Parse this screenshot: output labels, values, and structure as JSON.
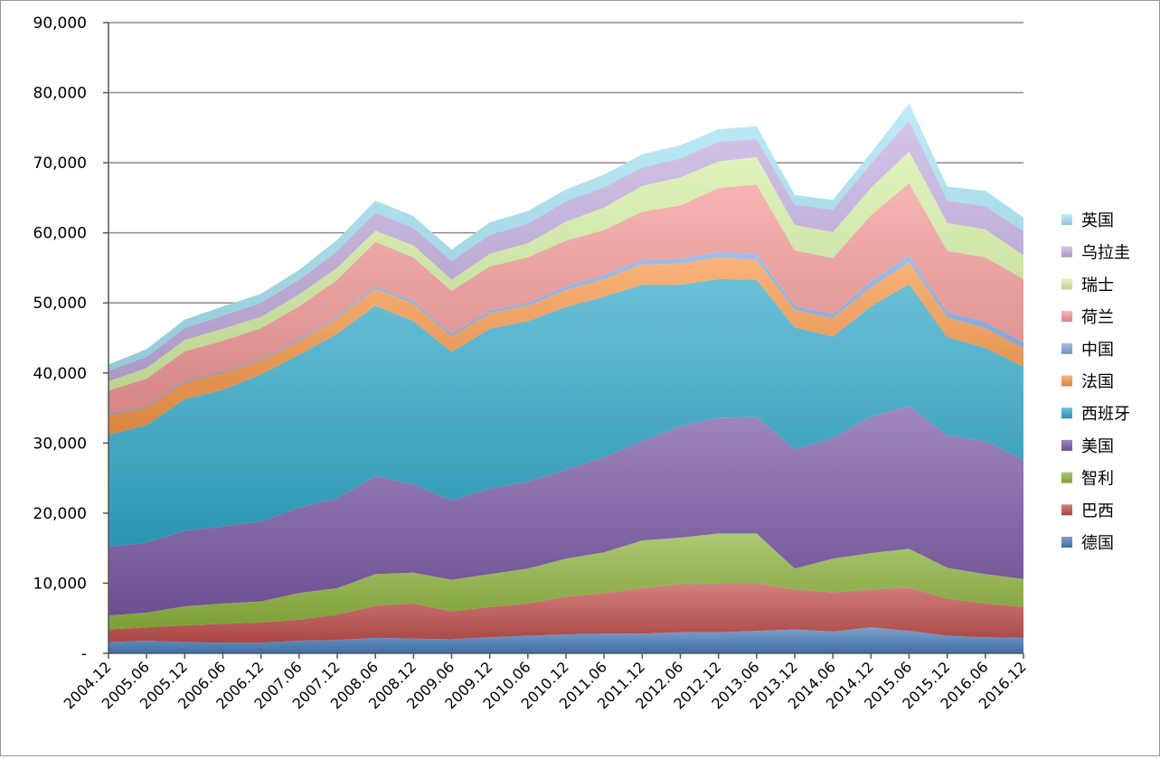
{
  "chart_data": {
    "type": "area",
    "stacked": true,
    "categories": [
      "2004.12",
      "2005.06",
      "2005.12",
      "2006.06",
      "2006.12",
      "2007.06",
      "2007.12",
      "2008.06",
      "2008.12",
      "2009.06",
      "2009.12",
      "2010.06",
      "2010.12",
      "2011.06",
      "2011.12",
      "2012.06",
      "2012.12",
      "2013.06",
      "2013.12",
      "2014.06",
      "2014.12",
      "2015.06",
      "2015.12",
      "2016.06",
      "2016.12"
    ],
    "ylim": [
      0,
      90000
    ],
    "yticks": [
      0,
      10000,
      20000,
      30000,
      40000,
      50000,
      60000,
      70000,
      80000,
      90000
    ],
    "ytick_labels": [
      "-",
      "10,000",
      "20,000",
      "30,000",
      "40,000",
      "50,000",
      "60,000",
      "70,000",
      "80,000",
      "90,000"
    ],
    "grid": true,
    "legend_position": "right",
    "series": [
      {
        "name": "德国",
        "color": "#4a7ebb",
        "values": [
          1600,
          1800,
          1600,
          1500,
          1500,
          1800,
          1900,
          2200,
          2100,
          2000,
          2300,
          2500,
          2700,
          2800,
          2800,
          3000,
          3000,
          3200,
          3400,
          3100,
          3700,
          3200,
          2500,
          2300,
          2200
        ]
      },
      {
        "name": "巴西",
        "color": "#c0504d",
        "values": [
          1800,
          1900,
          2400,
          2700,
          2900,
          3000,
          3600,
          4600,
          5000,
          4000,
          4300,
          4600,
          5400,
          5800,
          6500,
          6900,
          6900,
          6800,
          5700,
          5600,
          5400,
          6200,
          5300,
          4800,
          4400
        ]
      },
      {
        "name": "智利",
        "color": "#8db33c",
        "values": [
          2000,
          2100,
          2700,
          2900,
          3000,
          3800,
          3800,
          4500,
          4400,
          4500,
          4700,
          5000,
          5400,
          5800,
          6800,
          6600,
          7200,
          7100,
          3000,
          4800,
          5200,
          5500,
          4400,
          4200,
          4000
        ]
      },
      {
        "name": "美国",
        "color": "#7b5aa6",
        "values": [
          9800,
          10000,
          10800,
          11000,
          11400,
          12200,
          12800,
          14000,
          12600,
          11300,
          12200,
          12400,
          12700,
          13600,
          14200,
          15900,
          16500,
          16600,
          17000,
          17200,
          19500,
          20400,
          18900,
          19000,
          17000
        ]
      },
      {
        "name": "西班牙",
        "color": "#31a9c9",
        "values": [
          16000,
          16800,
          18800,
          19500,
          21000,
          21800,
          23500,
          24300,
          23300,
          21200,
          22800,
          22900,
          23200,
          22900,
          22300,
          20200,
          19800,
          19600,
          17400,
          14500,
          15700,
          17400,
          14000,
          13300,
          13300
        ]
      },
      {
        "name": "法国",
        "color": "#f79646",
        "values": [
          2700,
          2500,
          2400,
          2400,
          2000,
          2000,
          2200,
          2400,
          2500,
          2200,
          2200,
          2200,
          2400,
          2500,
          2900,
          3000,
          3100,
          2800,
          2500,
          2600,
          2700,
          3100,
          2800,
          2800,
          2600
        ]
      },
      {
        "name": "中国",
        "color": "#7fa6dd",
        "values": [
          200,
          200,
          200,
          200,
          200,
          300,
          300,
          400,
          400,
          400,
          400,
          400,
          600,
          600,
          700,
          700,
          800,
          900,
          600,
          600,
          900,
          1000,
          800,
          900,
          900
        ]
      },
      {
        "name": "荷兰",
        "color": "#f29896",
        "values": [
          3400,
          3900,
          4200,
          4400,
          4400,
          4600,
          5200,
          6300,
          6200,
          6100,
          6300,
          6500,
          6500,
          6400,
          6800,
          7600,
          9100,
          9900,
          7900,
          8000,
          9400,
          10300,
          8700,
          9200,
          9000
        ]
      },
      {
        "name": "瑞士",
        "color": "#d4f0a4",
        "values": [
          1300,
          1500,
          1600,
          1700,
          1600,
          1700,
          1700,
          1600,
          1700,
          1600,
          1800,
          2000,
          2700,
          3200,
          3700,
          4000,
          3800,
          3900,
          3600,
          3700,
          3900,
          4500,
          4000,
          4000,
          3400
        ]
      },
      {
        "name": "乌拉圭",
        "color": "#c3aee0",
        "values": [
          1500,
          1600,
          1700,
          1900,
          2000,
          2100,
          2400,
          2600,
          2500,
          2700,
          2700,
          2800,
          2900,
          2900,
          2600,
          2700,
          2800,
          2600,
          2900,
          3200,
          3500,
          4400,
          3200,
          3300,
          3400
        ]
      },
      {
        "name": "英国",
        "color": "#a5e4f4",
        "values": [
          900,
          1100,
          1200,
          1300,
          1300,
          1400,
          1600,
          1700,
          1700,
          1600,
          1800,
          1800,
          1700,
          1800,
          1900,
          1900,
          1800,
          1800,
          1400,
          1400,
          1500,
          2500,
          2000,
          2200,
          2000
        ]
      }
    ]
  }
}
